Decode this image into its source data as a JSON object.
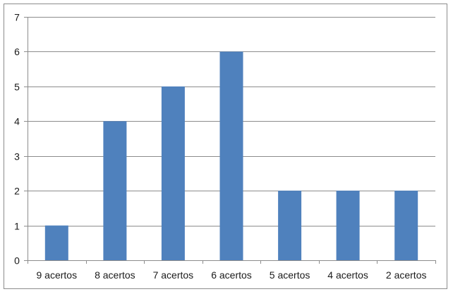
{
  "chart_data": {
    "type": "bar",
    "categories": [
      "9 acertos",
      "8 acertos",
      "7 acertos",
      "6 acertos",
      "5 acertos",
      "4 acertos",
      "2 acertos"
    ],
    "values": [
      1,
      4,
      5,
      6,
      2,
      2,
      2
    ],
    "ylim": [
      0,
      7
    ],
    "yticks": [
      "0",
      "1",
      "2",
      "3",
      "4",
      "5",
      "6",
      "7"
    ],
    "grid": true,
    "bar_color": "#4f81bd",
    "grid_color": "#8c8c8c",
    "title": "",
    "xlabel": "",
    "ylabel": ""
  }
}
